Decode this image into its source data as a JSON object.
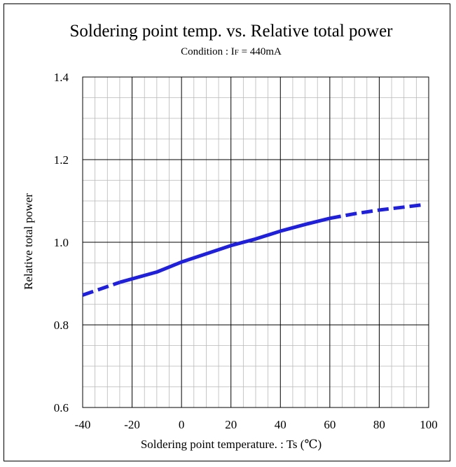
{
  "chart_data": {
    "type": "line",
    "title": "Soldering point temp. vs. Relative total power",
    "subtitle_prefix": "Condition : I",
    "subtitle_sub": "F",
    "subtitle_suffix": " = 440mA",
    "xlabel": "Soldering point temperature. : Ts (℃)",
    "ylabel": "Relative total power",
    "xlim": [
      -40,
      100
    ],
    "ylim": [
      0.6,
      1.4
    ],
    "x_ticks": [
      -40,
      -20,
      0,
      20,
      40,
      60,
      80,
      100
    ],
    "y_ticks": [
      "0.6",
      "0.8",
      "1.0",
      "1.2",
      "1.4"
    ],
    "x_minor_step": 5,
    "y_minor_step": 0.05,
    "grid": true,
    "line_color": "#1f1fe0",
    "series": [
      {
        "segments": [
          {
            "style": "dashed",
            "points": [
              [
                -40,
                0.872
              ],
              [
                -25,
                0.903
              ]
            ]
          },
          {
            "style": "solid",
            "points": [
              [
                -25,
                0.903
              ],
              [
                -10,
                0.928
              ],
              [
                0,
                0.952
              ],
              [
                10,
                0.972
              ],
              [
                20,
                0.992
              ],
              [
                30,
                1.008
              ],
              [
                40,
                1.027
              ],
              [
                50,
                1.043
              ],
              [
                60,
                1.058
              ]
            ]
          },
          {
            "style": "dashed",
            "points": [
              [
                60,
                1.058
              ],
              [
                70,
                1.069
              ],
              [
                80,
                1.078
              ],
              [
                90,
                1.085
              ],
              [
                98,
                1.091
              ]
            ]
          }
        ]
      }
    ]
  }
}
